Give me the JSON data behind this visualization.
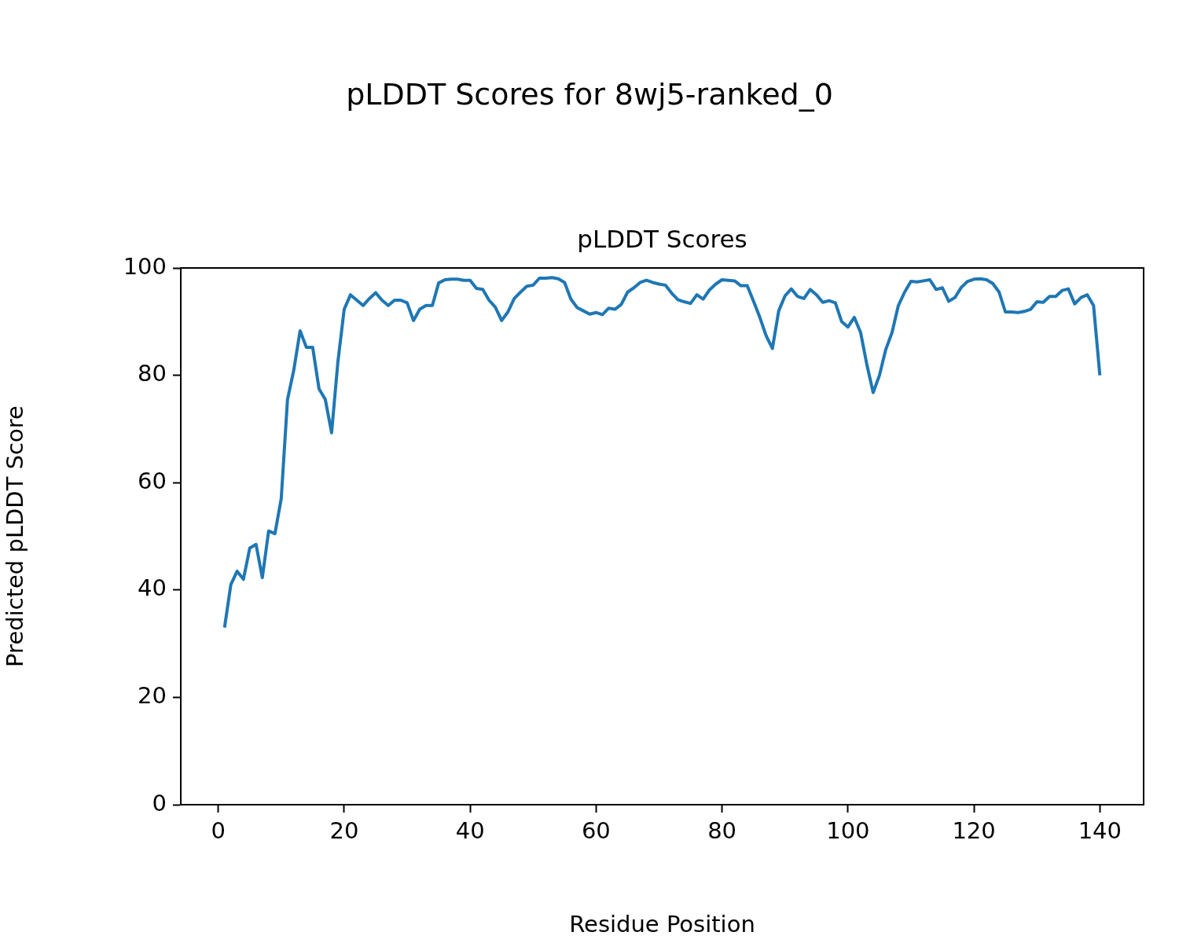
{
  "chart_data": {
    "type": "line",
    "title": "pLDDT Scores for 8wj5-ranked_0",
    "subtitle": "pLDDT Scores",
    "xlabel": "Residue Position",
    "ylabel": "Predicted pLDDT Score",
    "x": [
      1,
      2,
      3,
      4,
      5,
      6,
      7,
      8,
      9,
      10,
      11,
      12,
      13,
      14,
      15,
      16,
      17,
      18,
      19,
      20,
      21,
      22,
      23,
      24,
      25,
      26,
      27,
      28,
      29,
      30,
      31,
      32,
      33,
      34,
      35,
      36,
      37,
      38,
      39,
      40,
      41,
      42,
      43,
      44,
      45,
      46,
      47,
      48,
      49,
      50,
      51,
      52,
      53,
      54,
      55,
      56,
      57,
      58,
      59,
      60,
      61,
      62,
      63,
      64,
      65,
      66,
      67,
      68,
      69,
      70,
      71,
      72,
      73,
      74,
      75,
      76,
      77,
      78,
      79,
      80,
      81,
      82,
      83,
      84,
      85,
      86,
      87,
      88,
      89,
      90,
      91,
      92,
      93,
      94,
      95,
      96,
      97,
      98,
      99,
      100,
      101,
      102,
      103,
      104,
      105,
      106,
      107,
      108,
      109,
      110,
      111,
      112,
      113,
      114,
      115,
      116,
      117,
      118,
      119,
      120,
      121,
      122,
      123,
      124,
      125,
      126,
      127,
      128,
      129,
      130,
      131,
      132,
      133,
      134,
      135,
      136,
      137,
      138,
      139,
      140
    ],
    "series": [
      {
        "color": "#1f77b4",
        "values": [
          33,
          41,
          43.5,
          42,
          47.8,
          48.5,
          42.3,
          51,
          50.5,
          57,
          75.5,
          81,
          88.3,
          85.2,
          85.2,
          77.5,
          75.5,
          69.3,
          82.5,
          92.3,
          95,
          94,
          93,
          94.3,
          95.4,
          94,
          93,
          94,
          94,
          93.5,
          90.2,
          92.3,
          93,
          93,
          97.2,
          97.8,
          97.9,
          97.9,
          97.7,
          97.7,
          96.2,
          96,
          94,
          92.7,
          90.2,
          91.8,
          94.3,
          95.5,
          96.6,
          96.8,
          98.1,
          98.1,
          98.2,
          98,
          97.3,
          94.2,
          92.6,
          92,
          91.4,
          91.7,
          91.3,
          92.5,
          92.3,
          93.2,
          95.5,
          96.3,
          97.3,
          97.7,
          97.3,
          97,
          96.8,
          95.3,
          94.1,
          93.7,
          93.4,
          95,
          94.2,
          95.9,
          97,
          97.8,
          97.7,
          97.6,
          96.7,
          96.7,
          93.8,
          90.8,
          87.4,
          85,
          92,
          94.8,
          96.1,
          94.7,
          94.3,
          96,
          95,
          93.6,
          93.9,
          93.5,
          90,
          89,
          90.8,
          88,
          82,
          76.8,
          80,
          84.8,
          88,
          93,
          95.5,
          97.5,
          97.4,
          97.6,
          97.8,
          96,
          96.3,
          93.8,
          94.5,
          96.4,
          97.5,
          97.9,
          98,
          97.8,
          97.1,
          95.5,
          91.8,
          91.8,
          91.7,
          91.9,
          92.3,
          93.7,
          93.6,
          94.7,
          94.7,
          95.8,
          96.1,
          93.3,
          94.5,
          95,
          93,
          80
        ]
      }
    ],
    "xlim": [
      -5.95,
      146.95
    ],
    "xticks": [
      0,
      20,
      40,
      60,
      80,
      100,
      120,
      140
    ],
    "ylim": [
      0,
      100
    ],
    "yticks": [
      0,
      20,
      40,
      60,
      80,
      100
    ],
    "grid": false,
    "legend": false,
    "marker": "none",
    "line_style": "solid"
  }
}
